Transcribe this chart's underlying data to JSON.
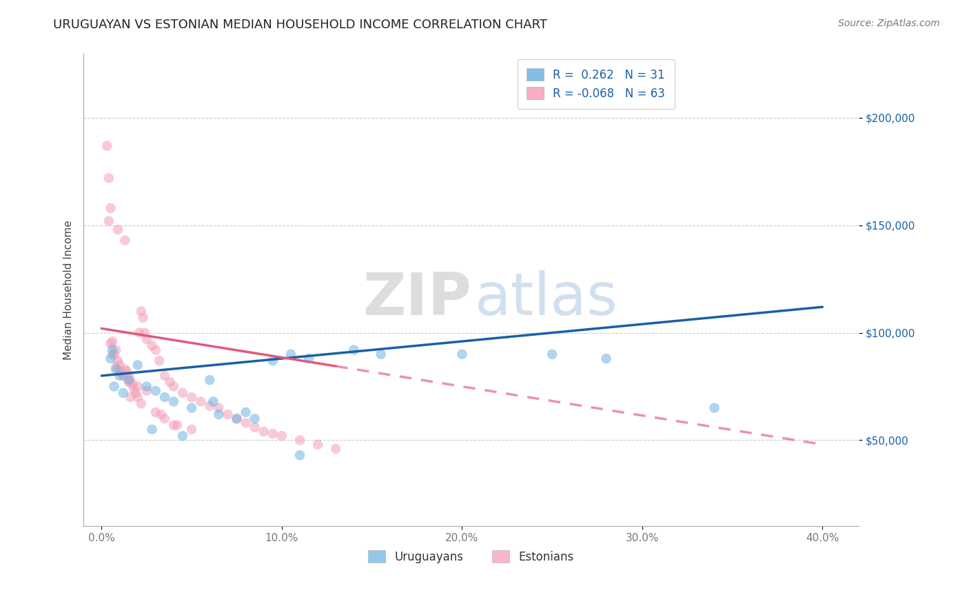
{
  "title": "URUGUAYAN VS ESTONIAN MEDIAN HOUSEHOLD INCOME CORRELATION CHART",
  "source": "Source: ZipAtlas.com",
  "ylabel": "Median Household Income",
  "xlabel_ticks": [
    "0.0%",
    "10.0%",
    "20.0%",
    "30.0%",
    "40.0%"
  ],
  "xlabel_vals": [
    0.0,
    10.0,
    20.0,
    30.0,
    40.0
  ],
  "yticks": [
    50000,
    100000,
    150000,
    200000
  ],
  "ytick_labels": [
    "$50,000",
    "$100,000",
    "$150,000",
    "$200,000"
  ],
  "xlim": [
    -1.0,
    42.0
  ],
  "ylim": [
    10000,
    230000
  ],
  "blue_R": 0.262,
  "blue_N": 31,
  "pink_R": -0.068,
  "pink_N": 63,
  "legend_label_blue": "Uruguayans",
  "legend_label_pink": "Estonians",
  "watermark_zip": "ZIP",
  "watermark_atlas": "atlas",
  "blue_color": "#6fb3e0",
  "pink_color": "#f4a0b8",
  "blue_line_color": "#1a5fa8",
  "pink_line_color": "#e05a7a",
  "title_fontsize": 13,
  "axis_label_fontsize": 11,
  "tick_fontsize": 11,
  "legend_fontsize": 12,
  "source_fontsize": 10,
  "dot_size": 110,
  "dot_alpha": 0.55,
  "line_width": 2.5,
  "blue_line_x0": 0.0,
  "blue_line_y0": 80000,
  "blue_line_x1": 40.0,
  "blue_line_y1": 112000,
  "pink_line_x0": 0.0,
  "pink_line_y0": 102000,
  "pink_line_x1": 40.0,
  "pink_line_y1": 48000,
  "pink_solid_end": 13.0,
  "blue_scatter_x": [
    0.5,
    0.6,
    0.8,
    1.0,
    1.5,
    2.0,
    2.5,
    3.0,
    3.5,
    4.0,
    5.0,
    6.0,
    6.5,
    7.5,
    8.0,
    9.5,
    10.5,
    11.5,
    14.0,
    15.5,
    20.0,
    25.0,
    28.0,
    0.7,
    1.2,
    2.8,
    4.5,
    6.2,
    8.5,
    11.0,
    34.0
  ],
  "blue_scatter_y": [
    88000,
    92000,
    83000,
    80000,
    78000,
    85000,
    75000,
    73000,
    70000,
    68000,
    65000,
    78000,
    62000,
    60000,
    63000,
    87000,
    90000,
    88000,
    92000,
    90000,
    90000,
    90000,
    88000,
    75000,
    72000,
    55000,
    52000,
    68000,
    60000,
    43000,
    65000
  ],
  "pink_scatter_x": [
    0.3,
    0.4,
    0.5,
    0.6,
    0.7,
    0.8,
    0.9,
    1.0,
    1.1,
    1.2,
    1.3,
    1.4,
    1.5,
    1.6,
    1.7,
    1.8,
    1.9,
    2.0,
    2.1,
    2.2,
    2.3,
    2.4,
    2.5,
    2.8,
    3.0,
    3.2,
    3.5,
    3.8,
    4.0,
    4.5,
    5.0,
    5.5,
    6.0,
    6.5,
    7.0,
    7.5,
    8.0,
    8.5,
    9.0,
    9.5,
    10.0,
    11.0,
    12.0,
    13.0,
    0.5,
    0.6,
    0.8,
    1.0,
    1.2,
    1.5,
    2.0,
    2.5,
    3.0,
    3.5,
    4.0,
    5.0,
    0.4,
    0.9,
    1.3,
    1.6,
    2.2,
    3.3,
    4.2
  ],
  "pink_scatter_y": [
    187000,
    172000,
    158000,
    96000,
    90000,
    92000,
    87000,
    85000,
    82000,
    80000,
    83000,
    82000,
    80000,
    78000,
    76000,
    74000,
    72000,
    70000,
    100000,
    110000,
    107000,
    100000,
    97000,
    94000,
    92000,
    87000,
    80000,
    77000,
    75000,
    72000,
    70000,
    68000,
    66000,
    65000,
    62000,
    60000,
    58000,
    56000,
    54000,
    53000,
    52000,
    50000,
    48000,
    46000,
    95000,
    90000,
    84000,
    82000,
    80000,
    77000,
    75000,
    73000,
    63000,
    60000,
    57000,
    55000,
    152000,
    148000,
    143000,
    70000,
    67000,
    62000,
    57000
  ]
}
